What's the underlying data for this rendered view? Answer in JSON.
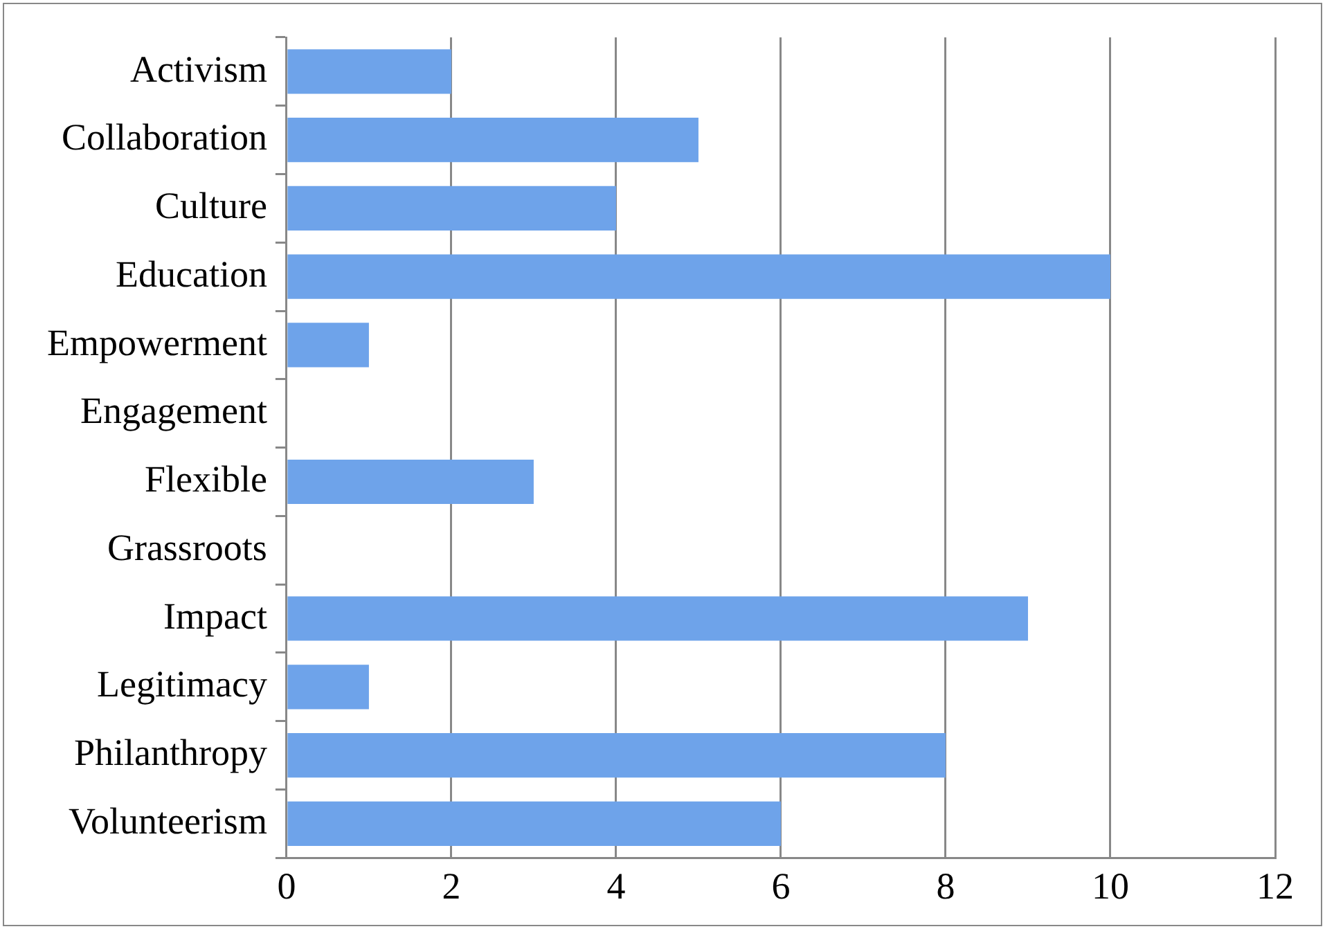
{
  "chart_data": {
    "type": "bar",
    "orientation": "horizontal",
    "categories": [
      "Activism",
      "Collaboration",
      "Culture",
      "Education",
      "Empowerment",
      "Engagement",
      "Flexible",
      "Grassroots",
      "Impact",
      "Legitimacy",
      "Philanthropy",
      "Volunteerism"
    ],
    "values": [
      2,
      5,
      4,
      10,
      1,
      0,
      3,
      0,
      9,
      1,
      8,
      6
    ],
    "color": "#6ea3ea",
    "xlim": [
      0,
      12
    ],
    "xticks": [
      0,
      2,
      4,
      6,
      8,
      10,
      12
    ],
    "grid": "x",
    "legend": false
  }
}
